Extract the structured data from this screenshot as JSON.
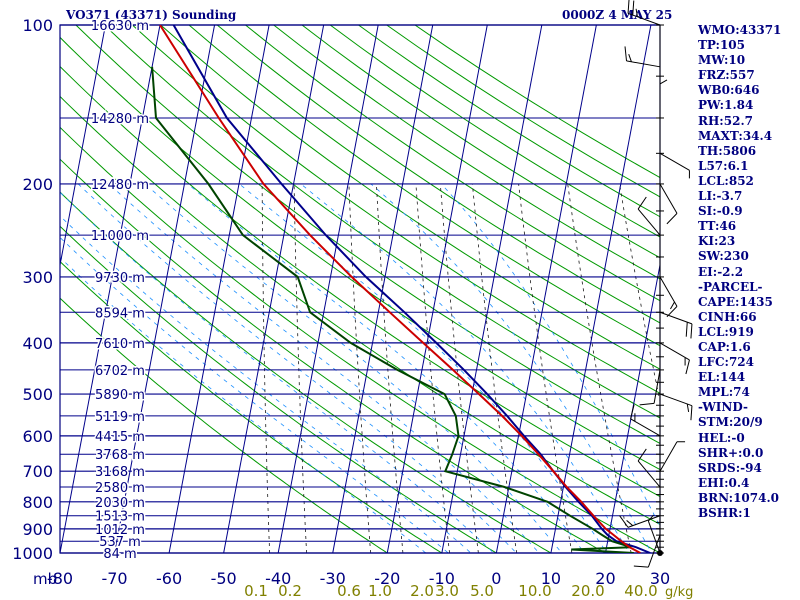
{
  "header": {
    "title": "VO371 (43371) Sounding",
    "time": "0000Z  4 MAY 25"
  },
  "colors": {
    "frame": "#000080",
    "isobar": "#00008b",
    "isotherm": "#00008b",
    "dry_adiabat": "#009900",
    "mixing_ratio": "#1a1a1a",
    "moist_adiabat": "#1e90ff",
    "temperature": "#00008b",
    "dewpoint": "#004400",
    "parcel": "#cc0000",
    "wind": "#000000",
    "mixing_label": "#808000"
  },
  "indices": [
    "WMO:43371",
    "TP:105",
    "MW:10",
    "FRZ:557",
    "WB0:646",
    "PW:1.84",
    "RH:52.7",
    "MAXT:34.4",
    "TH:5806",
    "L57:6.1",
    "LCL:852",
    "LI:-3.7",
    "SI:-0.9",
    "TT:46",
    "KI:23",
    "SW:230",
    "EI:-2.2",
    "-PARCEL-",
    "CAPE:1435",
    "CINH:66",
    "LCL:919",
    "CAP:1.6",
    "LFC:724",
    "EL:144",
    "MPL:74",
    "-WIND-",
    "STM:20/9",
    "HEL:-0",
    "SHR+:0.0",
    "SRDS:-94",
    "EHI:0.4",
    "BRN:1074.0",
    "BSHR:1"
  ],
  "chart_data": {
    "type": "skew-t",
    "pressure_unit": "mb",
    "temperature_unit": "C",
    "mixing_ratio_unit": "g/kg",
    "pressure_range": [
      100,
      1000
    ],
    "temperature_range": [
      -80,
      30
    ],
    "pressure_ticks": [
      100,
      200,
      300,
      400,
      500,
      600,
      700,
      800,
      900,
      1000
    ],
    "temperature_ticks": [
      -80,
      -70,
      -60,
      -50,
      -40,
      -30,
      -20,
      -10,
      0,
      10,
      20,
      30
    ],
    "mixing_ratio_ticks": [
      "0.1",
      "0.2",
      "0.6",
      "1.0",
      "2.0",
      "3.0",
      "5.0",
      "10.0",
      "20.0",
      "40.0"
    ],
    "mixing_ratio_label": "g/kg",
    "heights": [
      {
        "p": 100,
        "label": "16630 m"
      },
      {
        "p": 150,
        "label": "14280 m"
      },
      {
        "p": 200,
        "label": "12480 m"
      },
      {
        "p": 250,
        "label": "11000 m"
      },
      {
        "p": 300,
        "label": "9730 m"
      },
      {
        "p": 350,
        "label": "8594 m"
      },
      {
        "p": 400,
        "label": "7610 m"
      },
      {
        "p": 450,
        "label": "6702 m"
      },
      {
        "p": 500,
        "label": "5890 m"
      },
      {
        "p": 550,
        "label": "5119 m"
      },
      {
        "p": 600,
        "label": "4415 m"
      },
      {
        "p": 650,
        "label": "3768 m"
      },
      {
        "p": 700,
        "label": "3168 m"
      },
      {
        "p": 750,
        "label": "2580 m"
      },
      {
        "p": 800,
        "label": "2030 m"
      },
      {
        "p": 850,
        "label": "1513 m"
      },
      {
        "p": 900,
        "label": "1012 m"
      },
      {
        "p": 950,
        "label": "537 m"
      },
      {
        "p": 1000,
        "label": "84 m"
      }
    ],
    "series": [
      {
        "key": "temperature",
        "points": [
          [
            1000,
            28.2
          ],
          [
            975,
            25.4
          ],
          [
            950,
            21.6
          ],
          [
            925,
            19.8
          ],
          [
            900,
            18.5
          ],
          [
            850,
            16.2
          ],
          [
            800,
            13.3
          ],
          [
            750,
            10.4
          ],
          [
            700,
            7.6
          ],
          [
            650,
            4.7
          ],
          [
            600,
            1.0
          ],
          [
            550,
            -2.8
          ],
          [
            500,
            -7.2
          ],
          [
            450,
            -12.3
          ],
          [
            400,
            -18.3
          ],
          [
            350,
            -25.2
          ],
          [
            300,
            -33.5
          ],
          [
            250,
            -42.3
          ],
          [
            200,
            -52.2
          ],
          [
            150,
            -64.5
          ],
          [
            100,
            -77.5
          ]
        ]
      },
      {
        "key": "dewpoint",
        "points": [
          [
            1000,
            25.2
          ],
          [
            985,
            13.6
          ],
          [
            975,
            24.5
          ],
          [
            950,
            20.8
          ],
          [
            925,
            18.8
          ],
          [
            900,
            16.8
          ],
          [
            850,
            12.2
          ],
          [
            800,
            7.6
          ],
          [
            750,
            -0.8
          ],
          [
            700,
            -12.2
          ],
          [
            650,
            -11.5
          ],
          [
            600,
            -11.0
          ],
          [
            550,
            -12.2
          ],
          [
            500,
            -15.0
          ],
          [
            450,
            -24.5
          ],
          [
            400,
            -34.0
          ],
          [
            350,
            -42.5
          ],
          [
            300,
            -46.0
          ],
          [
            250,
            -57.5
          ],
          [
            200,
            -65.6
          ],
          [
            150,
            -77.5
          ],
          [
            120,
            -80.0
          ]
        ]
      },
      {
        "key": "parcel",
        "points": [
          [
            1000,
            26.4
          ],
          [
            975,
            24.2
          ],
          [
            950,
            22.5
          ],
          [
            919,
            20.5
          ],
          [
            900,
            19.2
          ],
          [
            850,
            16.5
          ],
          [
            800,
            13.8
          ],
          [
            750,
            10.6
          ],
          [
            700,
            7.6
          ],
          [
            650,
            4.3
          ],
          [
            600,
            0.6
          ],
          [
            550,
            -3.7
          ],
          [
            500,
            -8.7
          ],
          [
            450,
            -14.3
          ],
          [
            400,
            -20.7
          ],
          [
            350,
            -27.9
          ],
          [
            300,
            -36.1
          ],
          [
            250,
            -45.2
          ],
          [
            200,
            -55.5
          ],
          [
            150,
            -66.0
          ],
          [
            100,
            -80.0
          ]
        ]
      }
    ],
    "winds": [
      {
        "p": 1000,
        "dir": 340,
        "kt": 5
      },
      {
        "p": 925,
        "dir": 200,
        "kt": 10
      },
      {
        "p": 850,
        "dir": 250,
        "kt": 15
      },
      {
        "p": 750,
        "dir": 320,
        "kt": 10
      },
      {
        "p": 700,
        "dir": 30,
        "kt": 5
      },
      {
        "p": 600,
        "dir": 300,
        "kt": 15
      },
      {
        "p": 500,
        "dir": 110,
        "kt": 15
      },
      {
        "p": 450,
        "dir": 190,
        "kt": 10
      },
      {
        "p": 400,
        "dir": 120,
        "kt": 15
      },
      {
        "p": 350,
        "dir": 110,
        "kt": 20
      },
      {
        "p": 300,
        "dir": 150,
        "kt": 15
      },
      {
        "p": 250,
        "dir": 320,
        "kt": 10
      },
      {
        "p": 200,
        "dir": 150,
        "kt": 10
      },
      {
        "p": 175,
        "dir": 120,
        "kt": 5
      },
      {
        "p": 150,
        "dir": 0,
        "kt": 5
      },
      {
        "p": 120,
        "dir": 280,
        "kt": 15
      },
      {
        "p": 100,
        "dir": 290,
        "kt": 25
      }
    ]
  }
}
